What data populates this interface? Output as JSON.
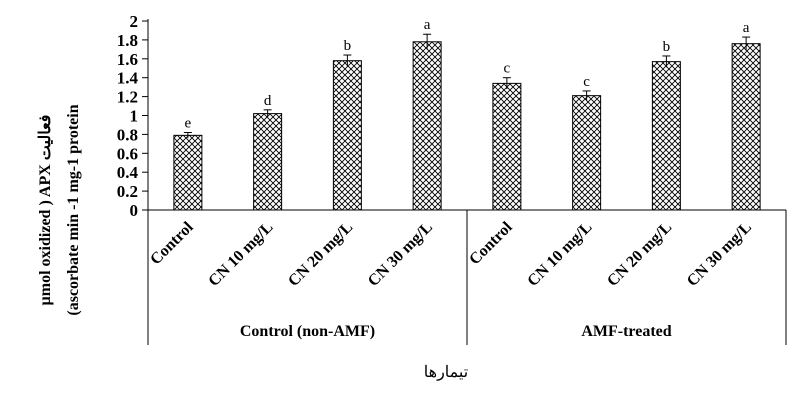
{
  "chart_data": {
    "type": "bar",
    "title": "",
    "ylabel_line1": "µmol oxidized ) APX فعالیت",
    "ylabel_line2": "(ascorbate min -1 mg-1 protein",
    "xlabel": "تیمارها",
    "ylim": [
      0,
      2
    ],
    "yticks": [
      "0",
      "0.2",
      "0.4",
      "0.6",
      "0.8",
      "1",
      "1.2",
      "1.4",
      "1.6",
      "1.8",
      "2"
    ],
    "groups": [
      {
        "name": "Control (non-AMF)",
        "bars": [
          {
            "category": "Control",
            "value": 0.79,
            "error": 0.03,
            "letter": "e"
          },
          {
            "category": "CN 10 mg/L",
            "value": 1.02,
            "error": 0.04,
            "letter": "d"
          },
          {
            "category": "CN 20 mg/L",
            "value": 1.58,
            "error": 0.06,
            "letter": "b"
          },
          {
            "category": "CN 30 mg/L",
            "value": 1.78,
            "error": 0.08,
            "letter": "a"
          }
        ]
      },
      {
        "name": "AMF-treated",
        "bars": [
          {
            "category": "Control",
            "value": 1.34,
            "error": 0.06,
            "letter": "c"
          },
          {
            "category": "CN 10 mg/L",
            "value": 1.21,
            "error": 0.05,
            "letter": "c"
          },
          {
            "category": "CN 20 mg/L",
            "value": 1.57,
            "error": 0.06,
            "letter": "b"
          },
          {
            "category": "CN 30 mg/L",
            "value": 1.76,
            "error": 0.07,
            "letter": "a"
          }
        ]
      }
    ],
    "grid": false,
    "bar_pattern": "crosshatch",
    "bar_color": "#000000"
  }
}
